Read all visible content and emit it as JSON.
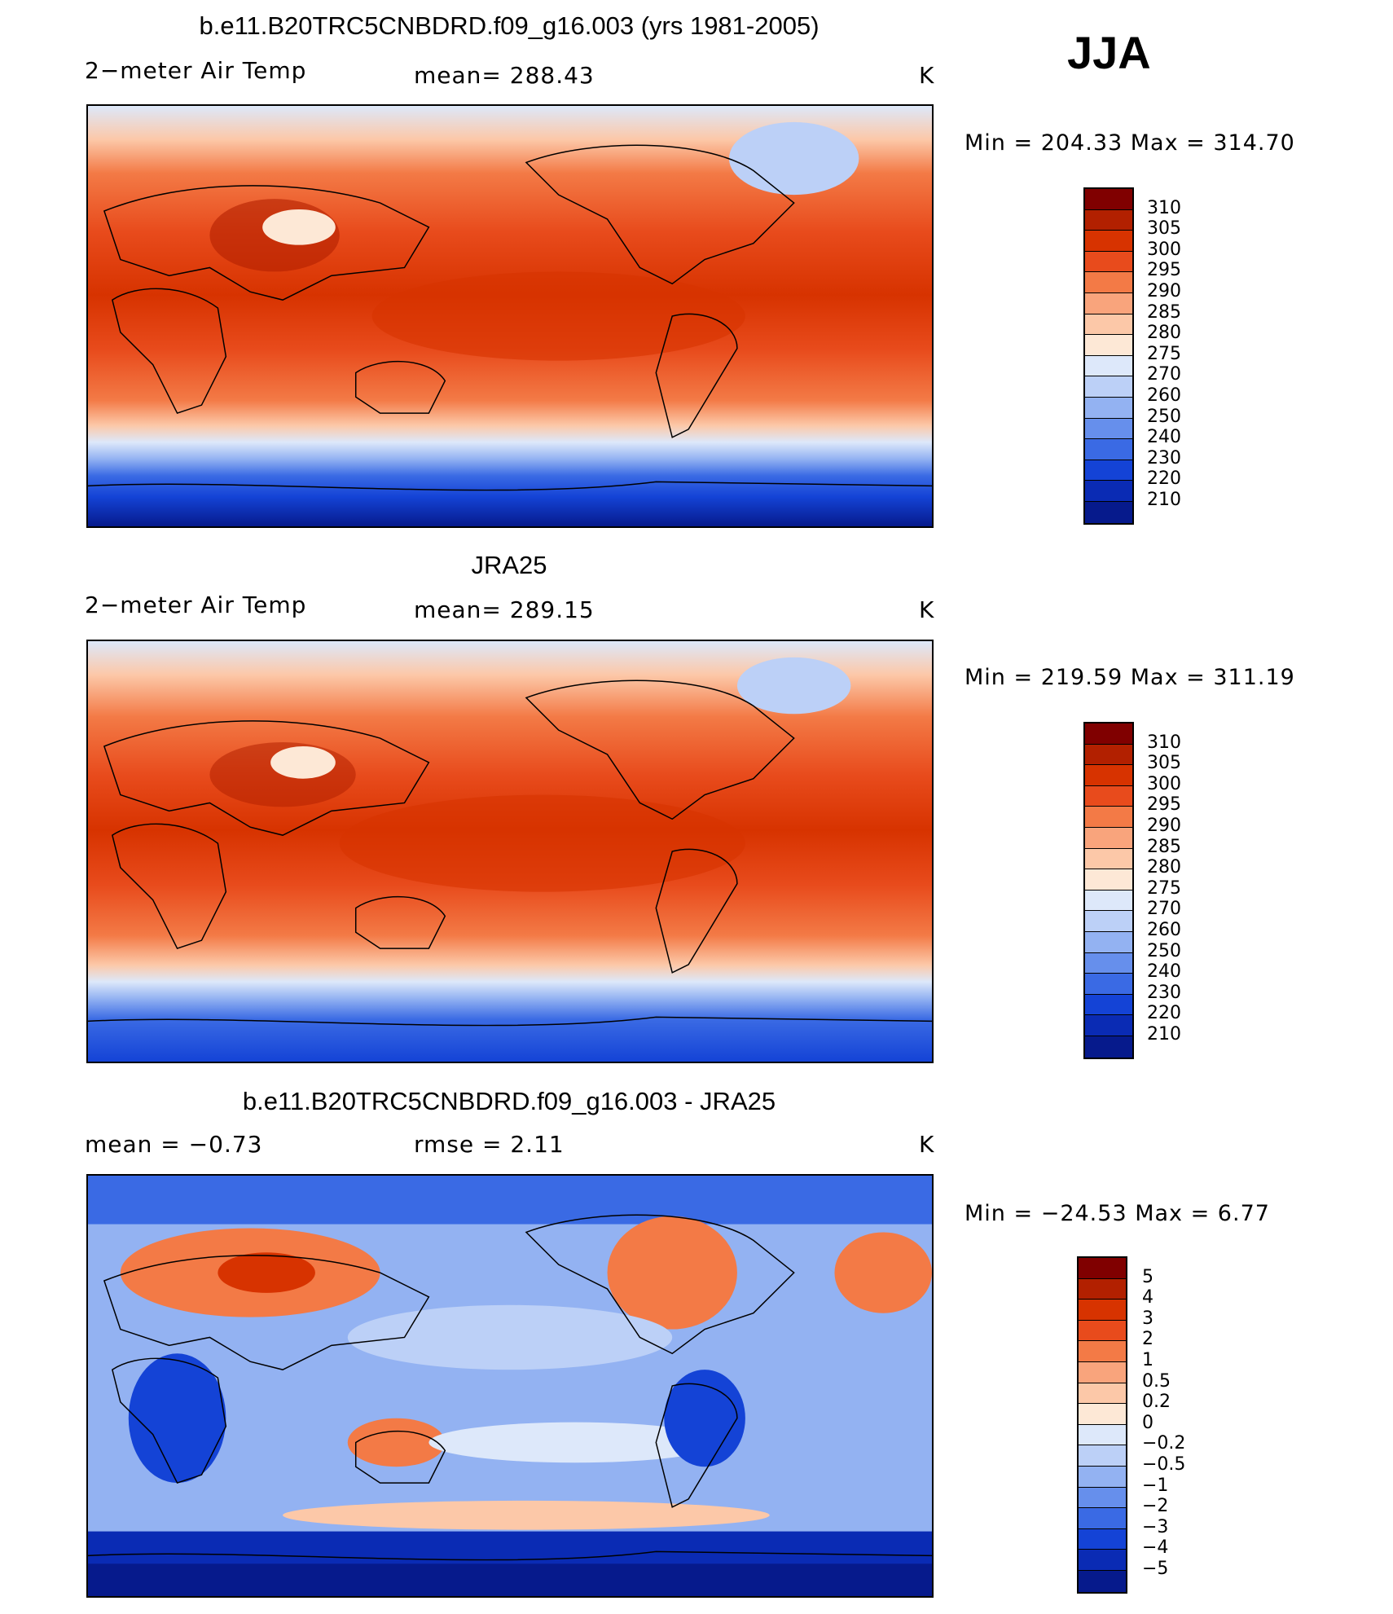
{
  "season": "JJA",
  "panels": [
    {
      "title": "b.e11.B20TRC5CNBDRD.f09_g16.003 (yrs 1981-2005)",
      "left": "2−meter Air Temp",
      "center": "mean=  288.43",
      "right": "K",
      "minmax": "Min  =  204.33  Max  =  314.70",
      "levels": [
        "310",
        "305",
        "300",
        "295",
        "290",
        "285",
        "280",
        "275",
        "270",
        "260",
        "250",
        "240",
        "230",
        "220",
        "210"
      ],
      "colors": [
        "#800000",
        "#b22000",
        "#d73300",
        "#e84b1c",
        "#f37a46",
        "#f9a47c",
        "#fcc8a8",
        "#fde8d6",
        "#dde8fa",
        "#bcd0f7",
        "#93b2f2",
        "#668fec",
        "#3a6ae4",
        "#1443d6",
        "#0a2bb4",
        "#061a8c"
      ]
    },
    {
      "title": "JRA25",
      "left": "2−meter Air Temp",
      "center": "mean=  289.15",
      "right": "K",
      "minmax": "Min  =  219.59  Max  =  311.19",
      "levels": [
        "310",
        "305",
        "300",
        "295",
        "290",
        "285",
        "280",
        "275",
        "270",
        "260",
        "250",
        "240",
        "230",
        "220",
        "210"
      ],
      "colors": [
        "#800000",
        "#b22000",
        "#d73300",
        "#e84b1c",
        "#f37a46",
        "#f9a47c",
        "#fcc8a8",
        "#fde8d6",
        "#dde8fa",
        "#bcd0f7",
        "#93b2f2",
        "#668fec",
        "#3a6ae4",
        "#1443d6",
        "#0a2bb4",
        "#061a8c"
      ]
    },
    {
      "title": "b.e11.B20TRC5CNBDRD.f09_g16.003 - JRA25",
      "left": "mean  =    −0.73",
      "center": "rmse  =     2.11",
      "right": "K",
      "minmax": "Min  =  −24.53  Max  =     6.77",
      "levels": [
        "5",
        "4",
        "3",
        "2",
        "1",
        "0.5",
        "0.2",
        "0",
        "−0.2",
        "−0.5",
        "−1",
        "−2",
        "−3",
        "−4",
        "−5"
      ],
      "colors": [
        "#800000",
        "#b22000",
        "#d73300",
        "#e84b1c",
        "#f37a46",
        "#f9a47c",
        "#fcc8a8",
        "#fde8d6",
        "#dde8fa",
        "#bcd0f7",
        "#93b2f2",
        "#668fec",
        "#3a6ae4",
        "#1443d6",
        "#0a2bb4",
        "#061a8c"
      ]
    }
  ]
}
